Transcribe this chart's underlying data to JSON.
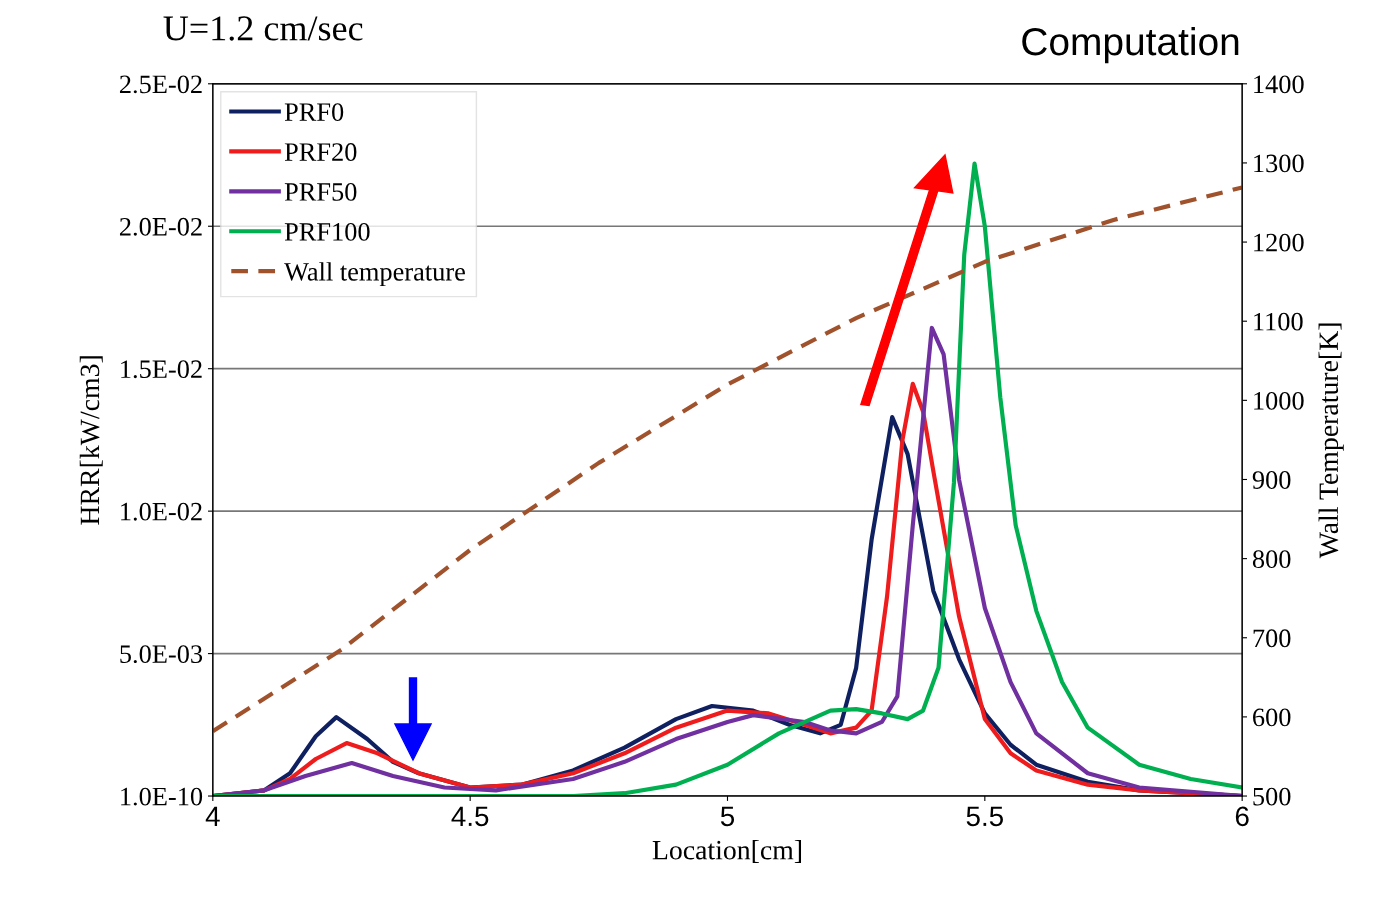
{
  "chart_data": {
    "type": "line",
    "title": "U=1.2 cm/sec",
    "xlabel": "Location[cm]",
    "ylabel": "HRR[kW/cm3]",
    "y2label": "Wall Temperature[K]",
    "annotations": [
      "Computation"
    ],
    "xlim": [
      4,
      6
    ],
    "xticks": [
      4,
      4.5,
      5,
      5.5,
      6
    ],
    "ylim": [
      0,
      0.025
    ],
    "yticks": [
      {
        "value": 1e-10,
        "label": "1.0E-10"
      },
      {
        "value": 0.005,
        "label": "5.0E-03"
      },
      {
        "value": 0.01,
        "label": "1.0E-02"
      },
      {
        "value": 0.015,
        "label": "1.5E-02"
      },
      {
        "value": 0.02,
        "label": "2.0E-02"
      },
      {
        "value": 0.025,
        "label": "2.5E-02"
      }
    ],
    "y2lim": [
      500,
      1400
    ],
    "y2ticks": [
      500,
      600,
      700,
      800,
      900,
      1000,
      1100,
      1200,
      1300,
      1400
    ],
    "grid": "y",
    "legend": "top left",
    "marker": "none",
    "series": [
      {
        "name": "PRF0",
        "color": "#0f2060",
        "line_style": "solid",
        "x": [
          4.0,
          4.1,
          4.15,
          4.2,
          4.24,
          4.3,
          4.35,
          4.4,
          4.5,
          4.6,
          4.7,
          4.8,
          4.9,
          4.97,
          5.05,
          5.12,
          5.18,
          5.22,
          5.25,
          5.28,
          5.32,
          5.35,
          5.4,
          5.45,
          5.5,
          5.55,
          5.6,
          5.7,
          5.8,
          6.0
        ],
        "values": [
          0,
          0.0002,
          0.0008,
          0.0021,
          0.00277,
          0.002,
          0.0012,
          0.0008,
          0.0003,
          0.0004,
          0.0009,
          0.0017,
          0.0027,
          0.00316,
          0.003,
          0.0025,
          0.0022,
          0.0025,
          0.0045,
          0.009,
          0.0133,
          0.012,
          0.0072,
          0.0048,
          0.0029,
          0.0018,
          0.0011,
          0.0005,
          0.0002,
          0
        ]
      },
      {
        "name": "PRF20",
        "color": "#ee1c1c",
        "line_style": "solid",
        "x": [
          4.0,
          4.1,
          4.15,
          4.2,
          4.26,
          4.32,
          4.4,
          4.5,
          4.6,
          4.7,
          4.8,
          4.9,
          5.0,
          5.08,
          5.15,
          5.2,
          5.25,
          5.28,
          5.31,
          5.34,
          5.36,
          5.38,
          5.4,
          5.45,
          5.5,
          5.55,
          5.6,
          5.7,
          5.8,
          6.0
        ],
        "values": [
          0,
          0.0002,
          0.0006,
          0.0013,
          0.00186,
          0.0015,
          0.0008,
          0.0003,
          0.0004,
          0.0008,
          0.0015,
          0.0024,
          0.003,
          0.0029,
          0.0025,
          0.0022,
          0.0024,
          0.003,
          0.007,
          0.0125,
          0.01447,
          0.0135,
          0.0114,
          0.0063,
          0.0027,
          0.0015,
          0.0009,
          0.0004,
          0.0002,
          0
        ]
      },
      {
        "name": "PRF50",
        "color": "#7030a0",
        "line_style": "solid",
        "x": [
          4.0,
          4.1,
          4.18,
          4.27,
          4.35,
          4.45,
          4.55,
          4.7,
          4.8,
          4.9,
          5.0,
          5.05,
          5.15,
          5.2,
          5.25,
          5.3,
          5.33,
          5.36,
          5.397,
          5.42,
          5.45,
          5.5,
          5.55,
          5.6,
          5.7,
          5.8,
          6.0
        ],
        "values": [
          0,
          0.0002,
          0.0007,
          0.00116,
          0.0007,
          0.0003,
          0.0002,
          0.0006,
          0.0012,
          0.002,
          0.0026,
          0.00284,
          0.0026,
          0.0023,
          0.0022,
          0.0026,
          0.0035,
          0.0095,
          0.01643,
          0.0155,
          0.0111,
          0.0066,
          0.004,
          0.0022,
          0.0008,
          0.0003,
          0
        ]
      },
      {
        "name": "PRF100",
        "color": "#00b050",
        "line_style": "solid",
        "x": [
          4.0,
          4.5,
          4.7,
          4.8,
          4.9,
          5.0,
          5.1,
          5.2,
          5.25,
          5.3,
          5.35,
          5.38,
          5.41,
          5.44,
          5.46,
          5.48,
          5.5,
          5.53,
          5.56,
          5.6,
          5.65,
          5.7,
          5.8,
          5.9,
          6.0
        ],
        "values": [
          0,
          0,
          0,
          0.0001,
          0.0004,
          0.0011,
          0.0022,
          0.003,
          0.00305,
          0.0029,
          0.0027,
          0.003,
          0.0045,
          0.011,
          0.019,
          0.0222,
          0.02,
          0.014,
          0.0095,
          0.0065,
          0.004,
          0.0024,
          0.0011,
          0.0006,
          0.0003
        ]
      },
      {
        "name": "Wall temperature",
        "color": "#a0522d",
        "line_style": "dashed",
        "axis": "y2",
        "x": [
          4.0,
          4.25,
          4.5,
          4.75,
          5.0,
          5.25,
          5.5,
          5.75,
          6.0
        ],
        "values": [
          582,
          685,
          811,
          921,
          1020,
          1104,
          1175,
          1228,
          1269
        ]
      }
    ]
  }
}
